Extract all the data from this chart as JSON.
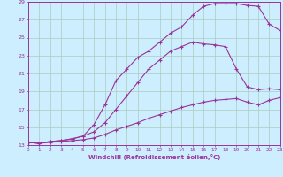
{
  "xlabel": "Windchill (Refroidissement éolien,°C)",
  "bg_color": "#cceeff",
  "line_color": "#993399",
  "grid_color": "#aaccbb",
  "xmin": 0,
  "xmax": 23,
  "ymin": 13,
  "ymax": 29,
  "yticks": [
    13,
    15,
    17,
    19,
    21,
    23,
    25,
    27,
    29
  ],
  "xticks": [
    0,
    1,
    2,
    3,
    4,
    5,
    6,
    7,
    8,
    9,
    10,
    11,
    12,
    13,
    14,
    15,
    16,
    17,
    18,
    19,
    20,
    21,
    22,
    23
  ],
  "series": [
    {
      "x": [
        0,
        1,
        2,
        3,
        4,
        5,
        6,
        7,
        8,
        9,
        10,
        11,
        12,
        13,
        14,
        15,
        16,
        17,
        18,
        19,
        20,
        21,
        22,
        23
      ],
      "y": [
        13.3,
        13.2,
        13.4,
        13.5,
        13.7,
        14.0,
        15.3,
        17.5,
        20.2,
        21.5,
        22.8,
        23.5,
        24.5,
        25.5,
        26.2,
        27.5,
        28.5,
        28.8,
        28.8,
        28.8,
        28.6,
        28.5,
        26.5,
        25.8
      ]
    },
    {
      "x": [
        0,
        1,
        2,
        3,
        4,
        5,
        6,
        7,
        8,
        9,
        10,
        11,
        12,
        13,
        14,
        15,
        16,
        17,
        18,
        19,
        20,
        21,
        22,
        23
      ],
      "y": [
        13.3,
        13.2,
        13.4,
        13.5,
        13.7,
        14.0,
        14.5,
        15.5,
        17.0,
        18.5,
        20.0,
        21.5,
        22.5,
        23.5,
        24.0,
        24.5,
        24.3,
        24.2,
        24.0,
        21.5,
        19.5,
        19.2,
        19.3,
        19.2
      ]
    },
    {
      "x": [
        0,
        1,
        2,
        3,
        4,
        5,
        6,
        7,
        8,
        9,
        10,
        11,
        12,
        13,
        14,
        15,
        16,
        17,
        18,
        19,
        20,
        21,
        22,
        23
      ],
      "y": [
        13.3,
        13.2,
        13.3,
        13.4,
        13.5,
        13.6,
        13.8,
        14.2,
        14.7,
        15.1,
        15.5,
        16.0,
        16.4,
        16.8,
        17.2,
        17.5,
        17.8,
        18.0,
        18.1,
        18.2,
        17.8,
        17.5,
        18.0,
        18.3
      ]
    }
  ]
}
